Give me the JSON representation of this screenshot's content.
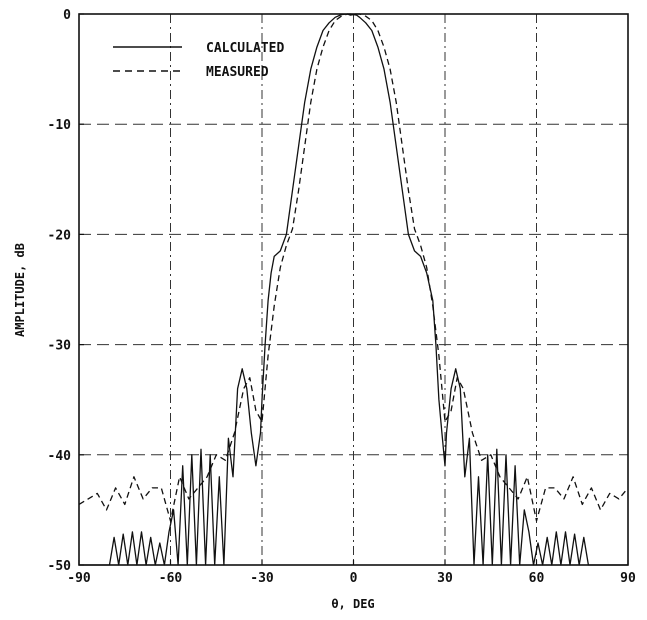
{
  "chart_data": {
    "type": "line",
    "xlabel": "θ, DEG",
    "ylabel": "AMPLITUDE, dB",
    "xlim": [
      -90,
      90
    ],
    "ylim": [
      -50,
      0
    ],
    "xticks": [
      -90,
      -60,
      -30,
      0,
      30,
      60,
      90
    ],
    "yticks": [
      0,
      -10,
      -20,
      -30,
      -40,
      -50
    ],
    "ytick_labels": [
      "0",
      "-10",
      "-20",
      "-30",
      "-40",
      "-50"
    ],
    "xtick_labels": [
      "-90",
      "-60",
      "-30",
      "0",
      "30",
      "60",
      "90"
    ],
    "grid": true,
    "legend_position": "top-left",
    "series": [
      {
        "name": "CALCULATED",
        "style": "solid",
        "color": "#111111",
        "x": [
          -90,
          -80,
          -78.5,
          -77,
          -75.5,
          -74,
          -72.5,
          -71,
          -69.5,
          -68,
          -66.5,
          -65,
          -63.5,
          -62,
          -60.5,
          -59,
          -57.5,
          -56,
          -54.5,
          -53,
          -51.5,
          -50,
          -48.5,
          -47,
          -45.5,
          -44,
          -42.5,
          -41,
          -39.5,
          -38,
          -36.5,
          -35,
          -33.5,
          -32,
          -30.5,
          -30,
          -29,
          -28,
          -27,
          -26,
          -24,
          -22,
          -20,
          -18,
          -16,
          -14,
          -12,
          -10,
          -8,
          -6,
          -4,
          -2,
          -1,
          0,
          1,
          2,
          4,
          6,
          8,
          10,
          12,
          14,
          16,
          18,
          20,
          22,
          24,
          26,
          27,
          28,
          29,
          30,
          30.5,
          32,
          33.5,
          35,
          36.5,
          38,
          39.5,
          41,
          42.5,
          44,
          45.5,
          47,
          48.5,
          50,
          51.5,
          53,
          54.5,
          56,
          57.5,
          59,
          60.5,
          62,
          63.5,
          65,
          66.5,
          68,
          69.5,
          71,
          72.5,
          74,
          75.5,
          77,
          78.5,
          80,
          90
        ],
        "y": [
          -50,
          -50,
          -47.5,
          -50,
          -47.2,
          -50,
          -47,
          -50,
          -47,
          -50,
          -47.5,
          -50,
          -48,
          -50,
          -47,
          -45,
          -50,
          -41,
          -50,
          -40,
          -50,
          -39.5,
          -50,
          -40,
          -50,
          -42,
          -50,
          -38.5,
          -42,
          -34,
          -32.2,
          -34,
          -38,
          -41,
          -38,
          -35,
          -30,
          -26,
          -23.5,
          -22,
          -21.5,
          -20,
          -16,
          -12,
          -8,
          -5,
          -3,
          -1.5,
          -0.8,
          -0.3,
          -0.05,
          0,
          -0.1,
          -0.05,
          -0.1,
          -0.3,
          -0.8,
          -1.5,
          -3,
          -5,
          -8,
          -12,
          -16,
          -20,
          -21.5,
          -22,
          -23.5,
          -26,
          -30,
          -35,
          -38,
          -41,
          -38,
          -34,
          -32.2,
          -34,
          -42,
          -38.5,
          -50,
          -42,
          -50,
          -40,
          -50,
          -39.5,
          -50,
          -40,
          -50,
          -41,
          -50,
          -45,
          -47,
          -50,
          -48,
          -50,
          -47.5,
          -50,
          -47,
          -50,
          -47,
          -50,
          -47.2,
          -50,
          -47.5,
          -50,
          -50,
          -50,
          -50
        ]
      },
      {
        "name": "MEASURED",
        "style": "dashed",
        "color": "#111111",
        "x": [
          -90,
          -87,
          -84,
          -81,
          -78,
          -75,
          -72,
          -69,
          -66,
          -63,
          -60,
          -57,
          -54,
          -51,
          -48,
          -45,
          -42,
          -39,
          -36,
          -34,
          -32,
          -30,
          -28,
          -26,
          -24,
          -22,
          -20,
          -18,
          -16,
          -14,
          -12,
          -10,
          -8,
          -6,
          -4,
          -2,
          0,
          2,
          4,
          6,
          8,
          10,
          12,
          14,
          16,
          18,
          20,
          22,
          24,
          26,
          28,
          30,
          32,
          34,
          36,
          39,
          42,
          45,
          48,
          51,
          54,
          57,
          60,
          63,
          66,
          69,
          72,
          75,
          78,
          81,
          84,
          87,
          90
        ],
        "y": [
          -44.5,
          -44,
          -43.5,
          -45,
          -43,
          -44.5,
          -42,
          -44,
          -43,
          -43,
          -46,
          -42,
          -44,
          -43,
          -42,
          -40,
          -40.5,
          -38,
          -34,
          -33,
          -36,
          -37,
          -31,
          -26.5,
          -23,
          -21,
          -19.5,
          -16,
          -12,
          -8,
          -5,
          -3,
          -1.5,
          -0.6,
          -0.2,
          0,
          0,
          0,
          -0.2,
          -0.6,
          -1.5,
          -3,
          -5,
          -8,
          -12,
          -16,
          -19.5,
          -21,
          -23,
          -26.5,
          -31,
          -37,
          -36,
          -33,
          -34,
          -38,
          -40.5,
          -40,
          -42,
          -43,
          -44,
          -42,
          -46,
          -43,
          -43,
          -44,
          -42,
          -44.5,
          -43,
          -45,
          -43.5,
          -44,
          -43
        ]
      }
    ]
  }
}
